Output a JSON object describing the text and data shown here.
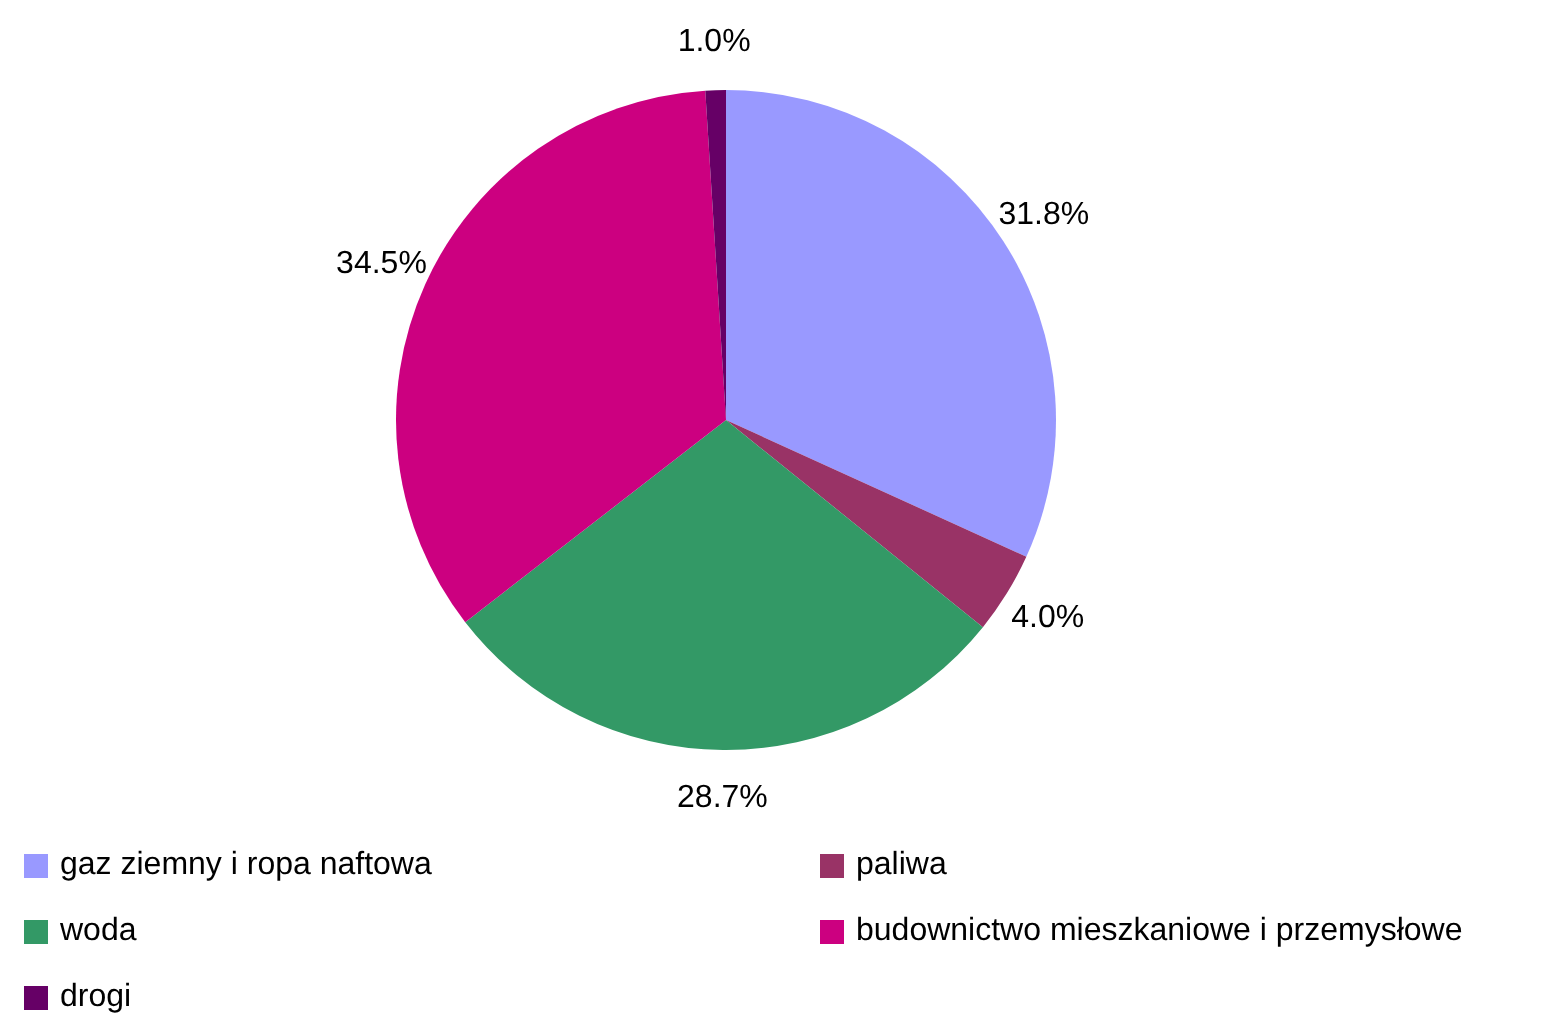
{
  "chart_data": {
    "type": "pie",
    "categories": [
      "gaz ziemny i ropa naftowa",
      "paliwa",
      "woda",
      "budownictwo mieszkaniowe i przemysłowe",
      "drogi"
    ],
    "values": [
      31.8,
      4.0,
      28.7,
      34.5,
      1.0
    ],
    "colors": [
      "#9999ff",
      "#993366",
      "#339966",
      "#cc0080",
      "#660066"
    ],
    "value_labels": [
      "31.8%",
      "4.0%",
      "28.7%",
      "34.5%",
      "1.0%"
    ],
    "legend": "bottom"
  }
}
